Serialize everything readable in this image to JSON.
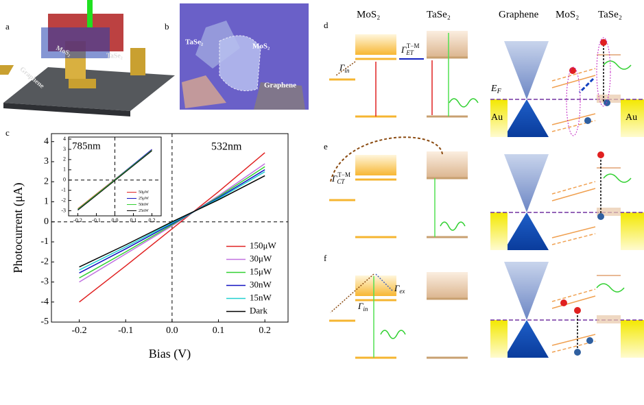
{
  "panel_labels": [
    "a",
    "b",
    "c",
    "d",
    "e",
    "f"
  ],
  "panel_a": {
    "labels": [
      "MoS₂",
      "TaSe₂",
      "Graphene"
    ]
  },
  "panel_b": {
    "labels": [
      "TaSe₂",
      "MoS₂",
      "Graphene"
    ]
  },
  "panel_def": {
    "headers": [
      "MoS₂",
      "TaSe₂",
      "Graphene",
      "MoS₂",
      "TaSe₂"
    ],
    "fermi": {
      "symbol": "E",
      "sub": "F"
    },
    "au": [
      "Au",
      "Au"
    ],
    "rates": [
      {
        "symbol": "Γ",
        "sub": "in"
      },
      {
        "symbol": "Γ",
        "sub": "ET",
        "sup": "T−M"
      },
      {
        "symbol": "Γ",
        "sub": "CT",
        "sup": "T−M"
      },
      {
        "symbol": "Γ",
        "sub": "in"
      },
      {
        "symbol": "Γ",
        "sub": "ex"
      }
    ]
  },
  "chart_data": [
    {
      "type": "line",
      "xlabel": "Bias (V)",
      "ylabel": "Photocurrent (μA)",
      "annotation": "532nm",
      "x": [
        -0.2,
        -0.1,
        0,
        0.1,
        0.2
      ],
      "series": [
        {
          "name": "150μW",
          "color": "#e02020",
          "values": [
            -4.0,
            -2.2,
            -0.35,
            1.5,
            3.45
          ]
        },
        {
          "name": "30μW",
          "color": "#c070e0",
          "values": [
            -3.0,
            -1.6,
            -0.2,
            1.3,
            2.9
          ]
        },
        {
          "name": "15μW",
          "color": "#30d030",
          "values": [
            -2.8,
            -1.5,
            -0.15,
            1.25,
            2.75
          ]
        },
        {
          "name": "30nW",
          "color": "#1010c0",
          "values": [
            -2.55,
            -1.35,
            -0.1,
            1.2,
            2.6
          ]
        },
        {
          "name": "15nW",
          "color": "#20d0d0",
          "values": [
            -2.4,
            -1.25,
            -0.05,
            1.15,
            2.5
          ]
        },
        {
          "name": "Dark",
          "color": "#000000",
          "values": [
            -2.25,
            -1.15,
            0,
            1.1,
            2.3
          ]
        }
      ],
      "xlim": [
        -0.26,
        0.25
      ],
      "ylim": [
        -5,
        4.4
      ],
      "xticks": [
        -0.2,
        -0.1,
        {
          "value": 0,
          "label": "0.0"
        },
        0.1,
        0.2
      ],
      "yticks": [
        -5,
        -4,
        -3,
        -2,
        -1,
        0,
        1,
        2,
        3,
        4
      ],
      "zero_lines": true,
      "legend": "lower right"
    },
    {
      "type": "line",
      "annotation": "785nm",
      "x": [
        -0.2,
        0.2
      ],
      "series": [
        {
          "name": "50μW",
          "color": "#e02020",
          "values": [
            -2.8,
            2.95
          ]
        },
        {
          "name": "25μW",
          "color": "#1010c0",
          "values": [
            -2.9,
            3.0
          ]
        },
        {
          "name": "50nW",
          "color": "#30d030",
          "values": [
            -2.85,
            2.9
          ]
        },
        {
          "name": "25nW",
          "color": "#000000",
          "values": [
            -2.95,
            2.85
          ]
        }
      ],
      "xlim": [
        -0.25,
        0.25
      ],
      "ylim": [
        -3.5,
        4.2
      ],
      "xticks": [
        -0.2,
        -0.1,
        {
          "value": 0,
          "label": "0.0"
        },
        0.1,
        0.2
      ],
      "yticks": [
        -3,
        -2,
        -1,
        0,
        1,
        2,
        3,
        4
      ],
      "zero_lines": true,
      "legend": "lower right"
    }
  ]
}
